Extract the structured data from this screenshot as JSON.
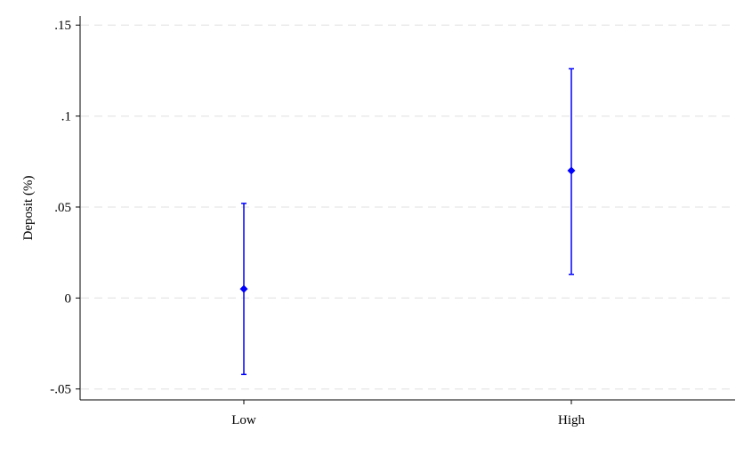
{
  "chart_data": {
    "type": "scatter",
    "subtype": "point-with-confidence-interval",
    "categories": [
      "Low",
      "High"
    ],
    "points": [
      {
        "category": "Low",
        "estimate": 0.005,
        "ci_low": -0.042,
        "ci_high": 0.052
      },
      {
        "category": "High",
        "estimate": 0.07,
        "ci_low": 0.013,
        "ci_high": 0.126
      }
    ],
    "ylabel": "Deposit (%)",
    "xlabel": "",
    "title": "",
    "ylim": [
      -0.056,
      0.155
    ],
    "yticks": [
      {
        "value": 0.15,
        "label": ".15"
      },
      {
        "value": 0.1,
        "label": ".1"
      },
      {
        "value": 0.05,
        "label": ".05"
      },
      {
        "value": 0.0,
        "label": "0"
      },
      {
        "value": -0.05,
        "label": "-.05"
      }
    ],
    "grid": "horizontal-dashed",
    "colors": {
      "marker": "#0000ff",
      "ci_line": "#0000ff",
      "grid": "#e6e6e6",
      "axis": "#000000"
    },
    "marker_shape": "diamond"
  }
}
